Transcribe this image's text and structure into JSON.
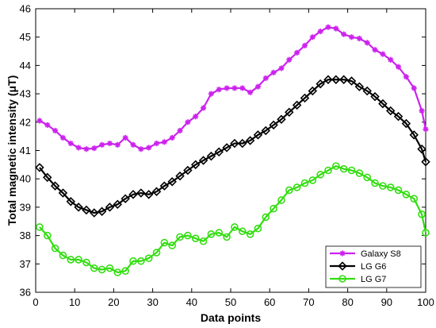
{
  "chart_data": {
    "type": "line",
    "xlabel": "Data points",
    "ylabel": "Total magnetic intensity (μT)",
    "xlim": [
      0,
      100
    ],
    "ylim": [
      36,
      46
    ],
    "xticks": [
      0,
      10,
      20,
      30,
      40,
      50,
      60,
      70,
      80,
      90,
      100
    ],
    "yticks": [
      36,
      37,
      38,
      39,
      40,
      41,
      42,
      43,
      44,
      45,
      46
    ],
    "grid": false,
    "legend_position": "bottom-right",
    "series": [
      {
        "name": "Galaxy S8",
        "color": "#cc22ee",
        "marker": "asterisk",
        "points": [
          [
            1,
            42.05
          ],
          [
            3,
            41.9
          ],
          [
            5,
            41.7
          ],
          [
            7,
            41.45
          ],
          [
            9,
            41.25
          ],
          [
            11,
            41.1
          ],
          [
            13,
            41.05
          ],
          [
            15,
            41.08
          ],
          [
            17,
            41.2
          ],
          [
            19,
            41.25
          ],
          [
            21,
            41.2
          ],
          [
            23,
            41.45
          ],
          [
            25,
            41.2
          ],
          [
            27,
            41.05
          ],
          [
            29,
            41.1
          ],
          [
            31,
            41.25
          ],
          [
            33,
            41.3
          ],
          [
            35,
            41.45
          ],
          [
            37,
            41.7
          ],
          [
            39,
            42.0
          ],
          [
            41,
            42.2
          ],
          [
            43,
            42.5
          ],
          [
            45,
            43.0
          ],
          [
            47,
            43.15
          ],
          [
            49,
            43.2
          ],
          [
            51,
            43.2
          ],
          [
            53,
            43.2
          ],
          [
            55,
            43.05
          ],
          [
            57,
            43.25
          ],
          [
            59,
            43.55
          ],
          [
            61,
            43.75
          ],
          [
            63,
            43.9
          ],
          [
            65,
            44.2
          ],
          [
            67,
            44.45
          ],
          [
            69,
            44.7
          ],
          [
            71,
            45.0
          ],
          [
            73,
            45.2
          ],
          [
            75,
            45.35
          ],
          [
            77,
            45.3
          ],
          [
            79,
            45.1
          ],
          [
            81,
            45.0
          ],
          [
            83,
            44.95
          ],
          [
            85,
            44.8
          ],
          [
            87,
            44.55
          ],
          [
            89,
            44.4
          ],
          [
            91,
            44.2
          ],
          [
            93,
            43.95
          ],
          [
            95,
            43.6
          ],
          [
            97,
            43.2
          ],
          [
            99,
            42.4
          ],
          [
            100,
            41.75
          ]
        ]
      },
      {
        "name": "LG G6",
        "color": "#000000",
        "marker": "diamond",
        "points": [
          [
            1,
            40.4
          ],
          [
            3,
            40.05
          ],
          [
            5,
            39.75
          ],
          [
            7,
            39.5
          ],
          [
            9,
            39.2
          ],
          [
            11,
            39.0
          ],
          [
            13,
            38.9
          ],
          [
            15,
            38.8
          ],
          [
            17,
            38.85
          ],
          [
            19,
            39.0
          ],
          [
            21,
            39.1
          ],
          [
            23,
            39.3
          ],
          [
            25,
            39.45
          ],
          [
            27,
            39.5
          ],
          [
            29,
            39.45
          ],
          [
            31,
            39.55
          ],
          [
            33,
            39.75
          ],
          [
            35,
            39.9
          ],
          [
            37,
            40.1
          ],
          [
            39,
            40.3
          ],
          [
            41,
            40.5
          ],
          [
            43,
            40.65
          ],
          [
            45,
            40.8
          ],
          [
            47,
            40.95
          ],
          [
            49,
            41.1
          ],
          [
            51,
            41.25
          ],
          [
            53,
            41.25
          ],
          [
            55,
            41.35
          ],
          [
            57,
            41.55
          ],
          [
            59,
            41.7
          ],
          [
            61,
            41.9
          ],
          [
            63,
            42.1
          ],
          [
            65,
            42.35
          ],
          [
            67,
            42.6
          ],
          [
            69,
            42.85
          ],
          [
            71,
            43.1
          ],
          [
            73,
            43.35
          ],
          [
            75,
            43.5
          ],
          [
            77,
            43.5
          ],
          [
            79,
            43.5
          ],
          [
            81,
            43.45
          ],
          [
            83,
            43.25
          ],
          [
            85,
            43.1
          ],
          [
            87,
            42.9
          ],
          [
            89,
            42.65
          ],
          [
            91,
            42.4
          ],
          [
            93,
            42.2
          ],
          [
            95,
            41.95
          ],
          [
            97,
            41.55
          ],
          [
            99,
            41.05
          ],
          [
            100,
            40.6
          ]
        ]
      },
      {
        "name": "LG G7",
        "color": "#33dd11",
        "marker": "circle",
        "points": [
          [
            1,
            38.3
          ],
          [
            3,
            38.0
          ],
          [
            5,
            37.55
          ],
          [
            7,
            37.3
          ],
          [
            9,
            37.15
          ],
          [
            11,
            37.15
          ],
          [
            13,
            37.05
          ],
          [
            15,
            36.85
          ],
          [
            17,
            36.8
          ],
          [
            19,
            36.85
          ],
          [
            21,
            36.7
          ],
          [
            23,
            36.75
          ],
          [
            25,
            37.1
          ],
          [
            27,
            37.1
          ],
          [
            29,
            37.2
          ],
          [
            31,
            37.4
          ],
          [
            33,
            37.75
          ],
          [
            35,
            37.65
          ],
          [
            37,
            37.95
          ],
          [
            39,
            38.0
          ],
          [
            41,
            37.9
          ],
          [
            43,
            37.8
          ],
          [
            45,
            38.05
          ],
          [
            47,
            38.1
          ],
          [
            49,
            37.95
          ],
          [
            51,
            38.3
          ],
          [
            53,
            38.15
          ],
          [
            55,
            38.05
          ],
          [
            57,
            38.25
          ],
          [
            59,
            38.65
          ],
          [
            61,
            38.95
          ],
          [
            63,
            39.25
          ],
          [
            65,
            39.6
          ],
          [
            67,
            39.7
          ],
          [
            69,
            39.85
          ],
          [
            71,
            39.95
          ],
          [
            73,
            40.15
          ],
          [
            75,
            40.3
          ],
          [
            77,
            40.45
          ],
          [
            79,
            40.35
          ],
          [
            81,
            40.3
          ],
          [
            83,
            40.2
          ],
          [
            85,
            40.05
          ],
          [
            87,
            39.85
          ],
          [
            89,
            39.75
          ],
          [
            91,
            39.7
          ],
          [
            93,
            39.6
          ],
          [
            95,
            39.45
          ],
          [
            97,
            39.3
          ],
          [
            99,
            38.75
          ],
          [
            100,
            38.1
          ]
        ]
      }
    ]
  }
}
